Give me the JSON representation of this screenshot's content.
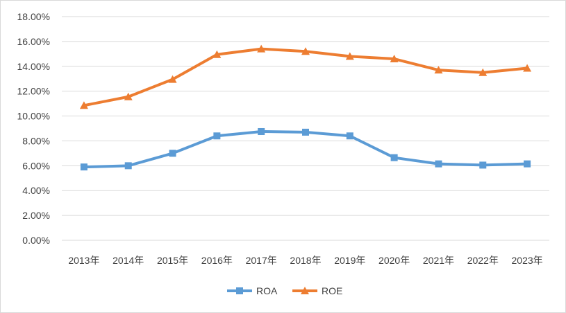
{
  "chart_data": {
    "type": "line",
    "categories": [
      "2013年",
      "2014年",
      "2015年",
      "2016年",
      "2017年",
      "2018年",
      "2019年",
      "2020年",
      "2021年",
      "2022年",
      "2023年"
    ],
    "y_tick_labels": [
      "0.00%",
      "2.00%",
      "4.00%",
      "6.00%",
      "8.00%",
      "10.00%",
      "12.00%",
      "14.00%",
      "16.00%",
      "18.00%"
    ],
    "ylim": [
      0,
      18
    ],
    "y_unit": "%",
    "grid": true,
    "legend_position": "bottom",
    "series": [
      {
        "name": "ROA",
        "values": [
          5.9,
          6.0,
          7.0,
          8.4,
          8.75,
          8.7,
          8.4,
          6.65,
          6.15,
          6.05,
          6.15
        ],
        "color": "#5b9bd5",
        "marker": "square"
      },
      {
        "name": "ROE",
        "values": [
          10.85,
          11.55,
          12.95,
          14.95,
          15.4,
          15.2,
          14.8,
          14.6,
          13.7,
          13.5,
          13.85
        ],
        "color": "#ed7d31",
        "marker": "triangle"
      }
    ]
  }
}
